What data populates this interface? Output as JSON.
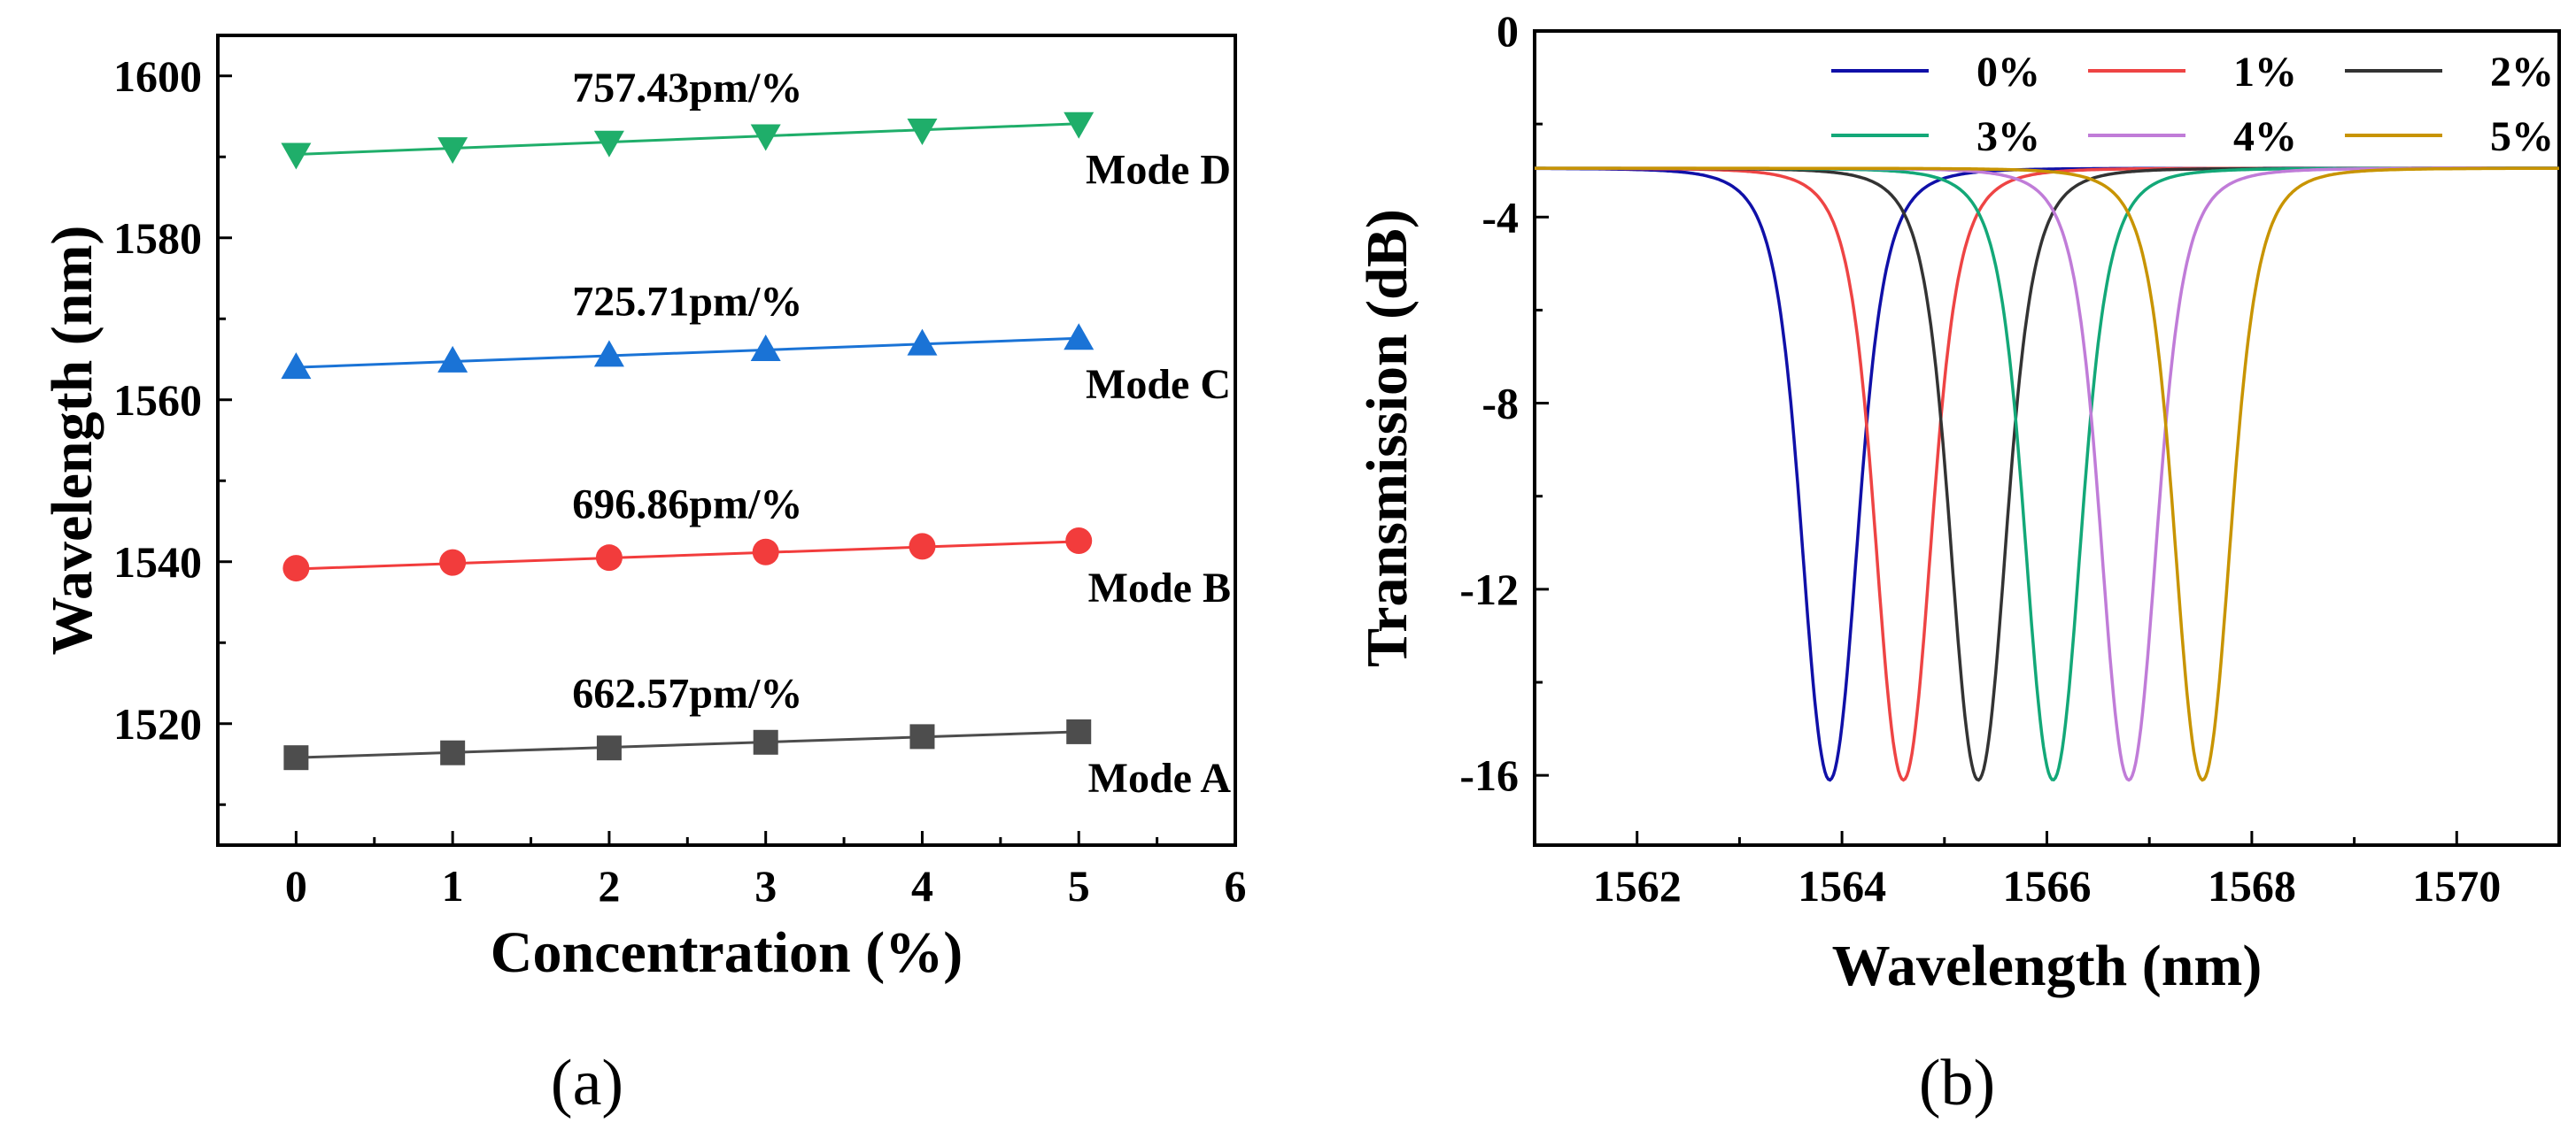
{
  "chart_data": [
    {
      "panel": "(a)",
      "type": "scatter",
      "xlabel": "Concentration (%)",
      "ylabel": "Wavelength (nm)",
      "xlim": [
        -0.5,
        6
      ],
      "ylim": [
        1505,
        1605
      ],
      "xticks": [
        "0",
        "1",
        "2",
        "3",
        "4",
        "5",
        "6"
      ],
      "yticks": [
        "1520",
        "1540",
        "1560",
        "1580",
        "1600"
      ],
      "x": [
        0,
        1,
        2,
        3,
        4,
        5
      ],
      "series": [
        {
          "name": "Mode A",
          "marker": "square",
          "color": "#4d4d4d",
          "slope_label": "662.57pm/%",
          "values": [
            1515.8,
            1516.4,
            1517.0,
            1517.7,
            1518.4,
            1519.0
          ],
          "fit": [
            1515.8,
            1519.0
          ]
        },
        {
          "name": "Mode B",
          "marker": "circle",
          "color": "#f23c3c",
          "slope_label": "696.86pm/%",
          "values": [
            1539.2,
            1539.9,
            1540.5,
            1541.2,
            1541.9,
            1542.6
          ],
          "fit": [
            1539.1,
            1542.5
          ]
        },
        {
          "name": "Mode C",
          "marker": "triangle-up",
          "color": "#1a73d6",
          "slope_label": "725.71pm/%",
          "values": [
            1564.0,
            1564.8,
            1565.5,
            1566.2,
            1566.9,
            1567.6
          ],
          "fit": [
            1564.0,
            1567.6
          ]
        },
        {
          "name": "Mode D",
          "marker": "triangle-down",
          "color": "#1fae6a",
          "slope_label": "757.43pm/%",
          "values": [
            1590.3,
            1591.0,
            1591.8,
            1592.6,
            1593.3,
            1594.1
          ],
          "fit": [
            1590.3,
            1594.1
          ]
        }
      ]
    },
    {
      "panel": "(b)",
      "type": "line",
      "xlabel": "Wavelength (nm)",
      "ylabel": "Transmission (dB)",
      "xlim": [
        1561,
        1571
      ],
      "ylim": [
        -17.5,
        0
      ],
      "xticks": [
        "1562",
        "1564",
        "1566",
        "1568",
        "1570"
      ],
      "yticks": [
        "0",
        "-4",
        "-8",
        "-12",
        "-16"
      ],
      "legend_position": "top-right",
      "series": [
        {
          "name": "0%",
          "color": "#1010a8",
          "center": 1563.88,
          "min_db": -16.1,
          "baseline_db": -2.95
        },
        {
          "name": "1%",
          "color": "#ee4444",
          "center": 1564.6,
          "min_db": -16.1,
          "baseline_db": -2.95
        },
        {
          "name": "2%",
          "color": "#333333",
          "center": 1565.33,
          "min_db": -16.1,
          "baseline_db": -2.95
        },
        {
          "name": "3%",
          "color": "#13a878",
          "center": 1566.06,
          "min_db": -16.1,
          "baseline_db": -2.95
        },
        {
          "name": "4%",
          "color": "#c07cd8",
          "center": 1566.8,
          "min_db": -16.1,
          "baseline_db": -2.95
        },
        {
          "name": "5%",
          "color": "#c89400",
          "center": 1567.52,
          "min_db": -16.1,
          "baseline_db": -2.95
        }
      ]
    }
  ]
}
